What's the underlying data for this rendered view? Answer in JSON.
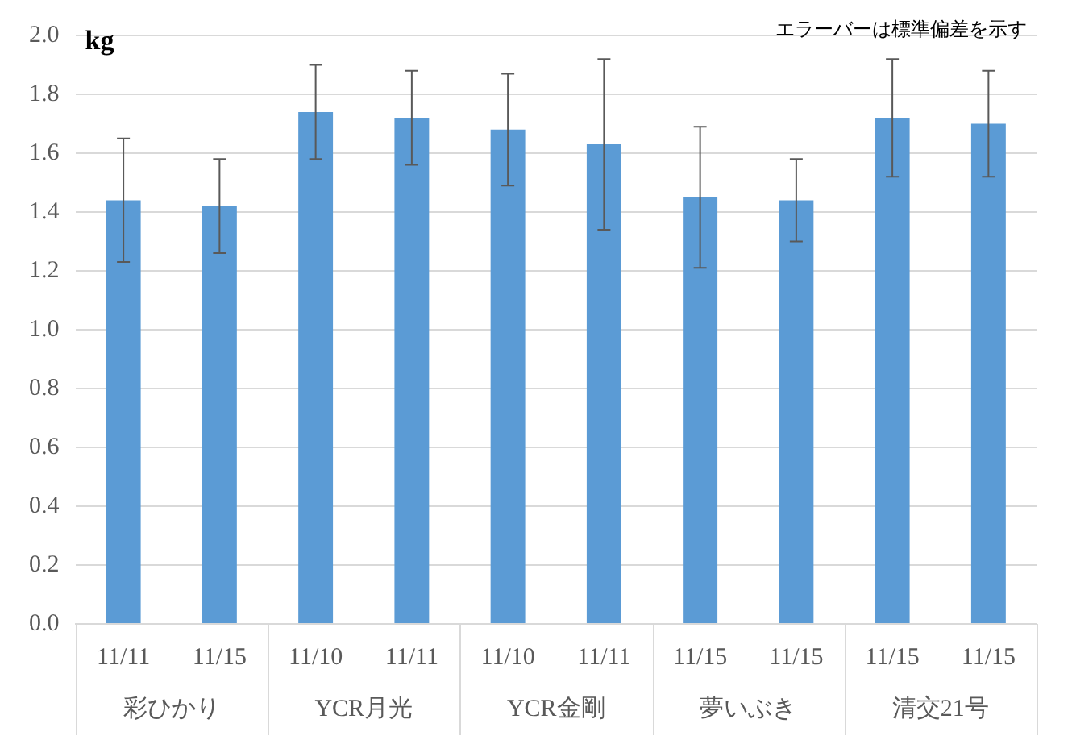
{
  "chart_data": {
    "type": "bar",
    "ylabel": "kg",
    "categories": [
      "11/11",
      "11/15",
      "11/10",
      "11/11",
      "11/10",
      "11/11",
      "11/15",
      "11/15",
      "11/15",
      "11/15"
    ],
    "values": [
      1.44,
      1.42,
      1.74,
      1.72,
      1.68,
      1.63,
      1.45,
      1.44,
      1.72,
      1.7
    ],
    "errors": [
      0.21,
      0.16,
      0.16,
      0.16,
      0.19,
      0.29,
      0.24,
      0.14,
      0.2,
      0.18
    ],
    "color": "#5b9bd5",
    "ylim": [
      0,
      2.0
    ],
    "yticks": [
      {
        "value": 0,
        "label": "0.0"
      },
      {
        "value": 0.2,
        "label": "0.2"
      },
      {
        "value": 0.4,
        "label": "0.4"
      },
      {
        "value": 0.6,
        "label": "0.6"
      },
      {
        "value": 0.8,
        "label": "0.8"
      },
      {
        "value": 1.0,
        "label": "1.0"
      },
      {
        "value": 1.2,
        "label": "1.2"
      },
      {
        "value": 1.4,
        "label": "1.4"
      },
      {
        "value": 1.6,
        "label": "1.6"
      },
      {
        "value": 1.8,
        "label": "1.8"
      },
      {
        "value": 2.0,
        "label": "2.0"
      }
    ],
    "grid": "y",
    "legend": false,
    "annotations": [
      "エラーバーは標準偏差を示す",
      "彩ひかり",
      "YCR月光",
      "YCR金剛",
      "夢いぶき",
      "清交21号"
    ]
  }
}
